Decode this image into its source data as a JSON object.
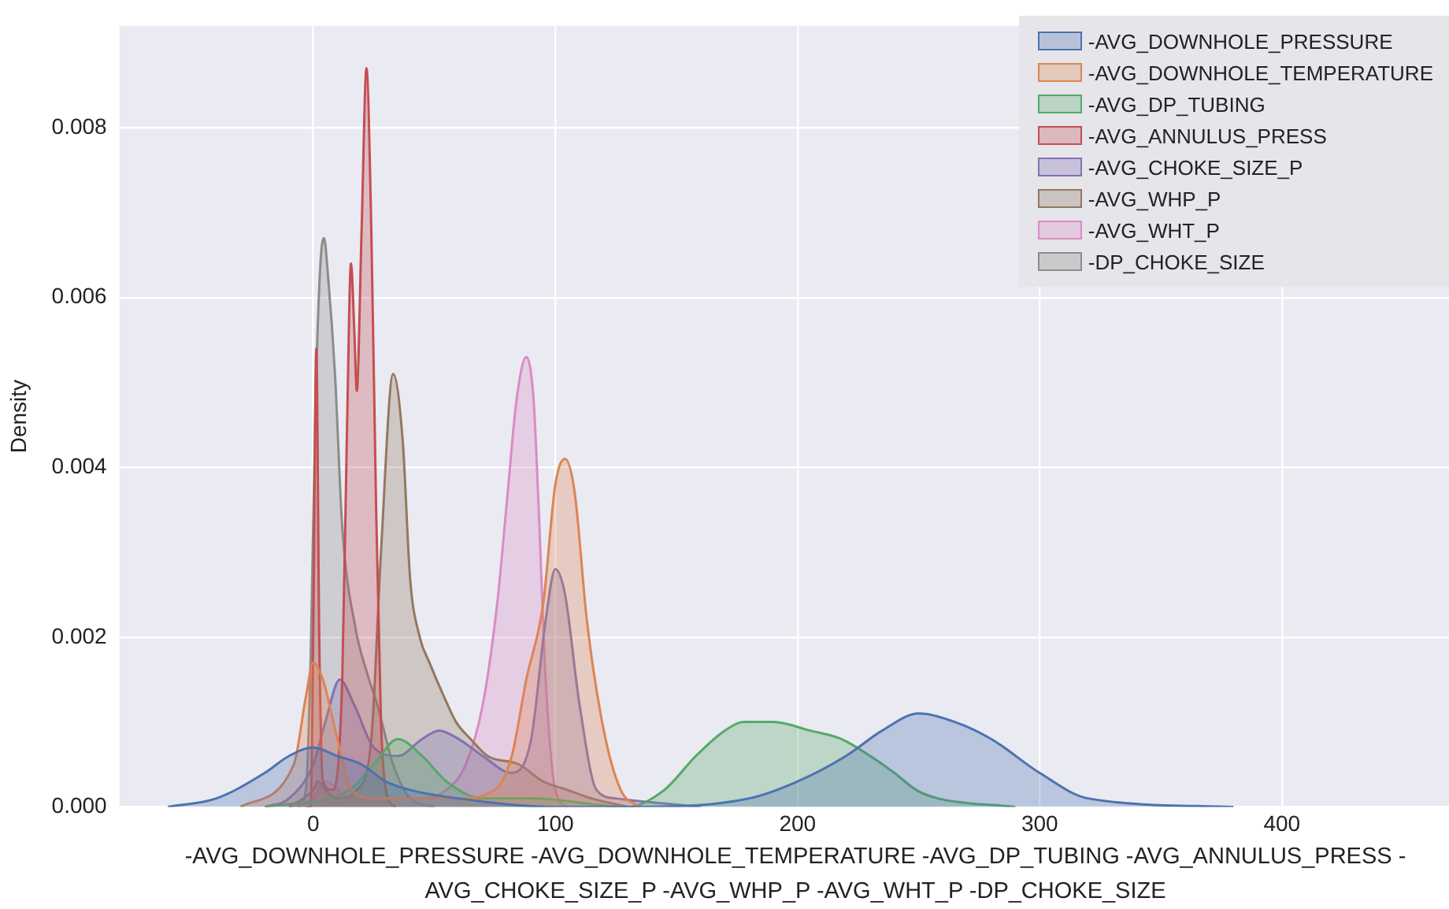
{
  "chart_data": {
    "type": "area",
    "xlabel": "-AVG_DOWNHOLE_PRESSURE -AVG_DOWNHOLE_TEMPERATURE -AVG_DP_TUBING -AVG_ANNULUS_PRESS -AVG_CHOKE_SIZE_P -AVG_WHP_P -AVG_WHT_P -DP_CHOKE_SIZE",
    "ylabel": "Density",
    "xlim": [
      -80,
      469
    ],
    "xticks": [
      0,
      100,
      200,
      300,
      400
    ],
    "ylim": [
      0,
      0.0092
    ],
    "yticks": [
      {
        "value": 0,
        "label": "0.000"
      },
      {
        "value": 0.002,
        "label": "0.002"
      },
      {
        "value": 0.004,
        "label": "0.004"
      },
      {
        "value": 0.006,
        "label": "0.006"
      },
      {
        "value": 0.008,
        "label": "0.008"
      }
    ],
    "grid": true,
    "legend": "top right",
    "series": [
      {
        "name": "-AVG_DOWNHOLE_PRESSURE",
        "color": "#4c72b0",
        "x": [
          -60,
          -40,
          -20,
          -10,
          0,
          10,
          20,
          30,
          40,
          60,
          100,
          130,
          180,
          200,
          220,
          235,
          250,
          265,
          280,
          300,
          320,
          380
        ],
        "values": [
          0,
          0.0001,
          0.0004,
          0.0006,
          0.0007,
          0.0006,
          0.0005,
          0.0003,
          0.0002,
          0.0001,
          0,
          0,
          0.0001,
          0.0003,
          0.0006,
          0.0009,
          0.0011,
          0.001,
          0.0008,
          0.0004,
          0.0001,
          0
        ]
      },
      {
        "name": "-AVG_DOWNHOLE_TEMPERATURE",
        "color": "#dd8452",
        "x": [
          -30,
          -8,
          -3,
          0,
          4,
          10,
          16,
          25,
          60,
          75,
          82,
          88,
          95,
          100,
          104,
          108,
          113,
          120,
          127,
          135
        ],
        "values": [
          0,
          0.0005,
          0.0013,
          0.0017,
          0.0015,
          0.0008,
          0.0002,
          0.0001,
          0.0001,
          0.0002,
          0.0006,
          0.0015,
          0.0024,
          0.0038,
          0.0041,
          0.0037,
          0.0022,
          0.0009,
          0.0002,
          0
        ]
      },
      {
        "name": "-AVG_DP_TUBING",
        "color": "#55a868",
        "x": [
          -20,
          15,
          25,
          35,
          45,
          55,
          70,
          90,
          130,
          145,
          158,
          170,
          178,
          190,
          205,
          218,
          230,
          240,
          249,
          258,
          290
        ],
        "values": [
          0,
          0.0002,
          0.0005,
          0.0008,
          0.0006,
          0.0003,
          0.0001,
          0.0001,
          0,
          0.0002,
          0.0006,
          0.0009,
          0.001,
          0.001,
          0.0009,
          0.0008,
          0.0006,
          0.0004,
          0.0002,
          0.0001,
          0
        ]
      },
      {
        "name": "-AVG_ANNULUS_PRESS",
        "color": "#c44e52",
        "x": [
          -3,
          -1,
          0,
          1.3,
          2.5,
          4,
          8,
          12,
          14,
          15.6,
          17,
          18,
          20,
          22,
          24,
          26,
          28,
          30,
          34
        ],
        "values": [
          0,
          0,
          0.002,
          0.0054,
          0.002,
          0.0003,
          0.0002,
          0.0015,
          0.0045,
          0.0064,
          0.0056,
          0.0049,
          0.0068,
          0.0087,
          0.0068,
          0.0035,
          0.001,
          0.0002,
          0
        ]
      },
      {
        "name": "-AVG_CHOKE_SIZE_P",
        "color": "#8172b3",
        "x": [
          -20,
          -10,
          0,
          5,
          11,
          17,
          25,
          35,
          45,
          52,
          60,
          70,
          82,
          90,
          96,
          100,
          104,
          110,
          117,
          125,
          160
        ],
        "values": [
          0,
          0.0001,
          0.0005,
          0.001,
          0.0015,
          0.0012,
          0.0007,
          0.0006,
          0.0008,
          0.0009,
          0.0008,
          0.0006,
          0.0004,
          0.0008,
          0.0022,
          0.0028,
          0.0025,
          0.0012,
          0.0002,
          0.0001,
          0
        ]
      },
      {
        "name": "-AVG_WHP_P",
        "color": "#937860",
        "x": [
          -10,
          0,
          2,
          5,
          10,
          18,
          24,
          28,
          33,
          37,
          40,
          44,
          48,
          54,
          59,
          65,
          72,
          85,
          95,
          105,
          115,
          130
        ],
        "values": [
          0,
          0.0002,
          0.0003,
          0.0002,
          0.0001,
          0.0002,
          0.0008,
          0.003,
          0.0051,
          0.0043,
          0.0027,
          0.002,
          0.0017,
          0.0013,
          0.001,
          0.0008,
          0.0006,
          0.0005,
          0.0003,
          0.0002,
          0.0001,
          0
        ]
      },
      {
        "name": "-AVG_WHT_P",
        "color": "#da8bc3",
        "x": [
          -10,
          0,
          5,
          15,
          45,
          55,
          63,
          70,
          76,
          80,
          84,
          88,
          91,
          93,
          96,
          100,
          105
        ],
        "values": [
          0,
          0.0001,
          0.0003,
          0.0001,
          0.0001,
          0.0002,
          0.0005,
          0.0012,
          0.0024,
          0.0036,
          0.0048,
          0.0053,
          0.0048,
          0.0036,
          0.0015,
          0.0002,
          0
        ]
      },
      {
        "name": "-DP_CHOKE_SIZE",
        "color": "#8c8c8c",
        "x": [
          -6,
          -3,
          -1,
          1,
          3,
          4.5,
          6,
          9,
          12,
          17.5,
          22,
          26.5,
          33,
          40,
          50
        ],
        "values": [
          0,
          0.0002,
          0.0018,
          0.0048,
          0.0064,
          0.0067,
          0.0063,
          0.0051,
          0.0033,
          0.0021,
          0.0016,
          0.0012,
          0.0005,
          0.0001,
          0
        ]
      }
    ]
  }
}
